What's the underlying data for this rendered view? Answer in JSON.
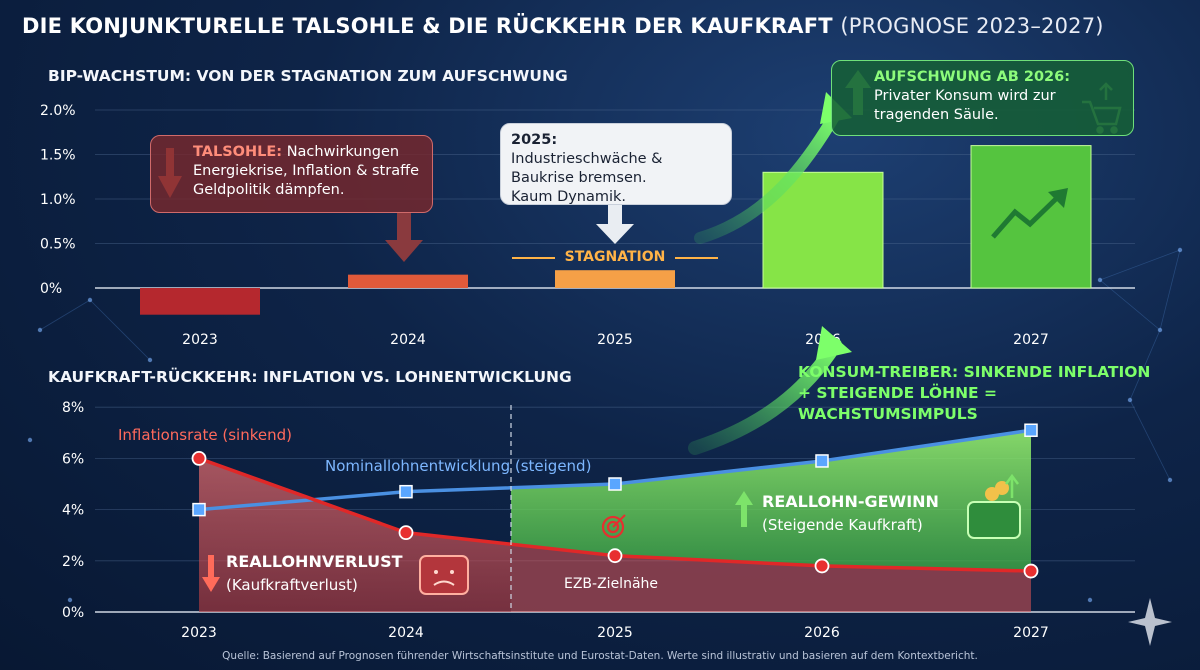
{
  "title": {
    "main": "DIE KONJUNKTURELLE TALSOHLE & DIE RÜCKKEHR DER KAUFKRAFT",
    "subtitle": "(PROGNOSE 2023–2027)"
  },
  "colors": {
    "negative_bar": "#b5282e",
    "bar_2024": "#e05a3a",
    "bar_2025": "#f5a047",
    "bar_2026": "#86e447",
    "bar_2027": "#55c43f",
    "inflation": "#e02828",
    "wages": "#4a90e2",
    "gain_area": "#7de36a",
    "loss_area": "#e05555"
  },
  "chart_data": [
    {
      "type": "bar",
      "title": "BIP-WACHSTUM: VON DER STAGNATION ZUM AUFSCHWUNG",
      "categories": [
        "2023",
        "2024",
        "2025",
        "2026",
        "2027"
      ],
      "values": [
        -0.3,
        0.15,
        0.2,
        1.3,
        1.6
      ],
      "ylim": [
        -0.3,
        2.0
      ],
      "yticks": [
        0,
        0.5,
        1.0,
        1.5,
        2.0
      ],
      "ytick_labels": [
        "0%",
        "0.5%",
        "1.0%",
        "1.5%",
        "2.0%"
      ],
      "grid": true,
      "annotations": {
        "talsohle_label": "TALSOHLE:",
        "talsohle_text": "Nachwirkungen Energiekrise, Inflation & straffe Geldpolitik dämpfen.",
        "y2025_label": "2025:",
        "y2025_text": "Industrieschwäche & Baukrise bremsen. Kaum Dynamik.",
        "stagnation": "STAGNATION",
        "aufschwung_label": "AUFSCHWUNG AB 2026:",
        "aufschwung_text": "Privater Konsum wird zur tragenden Säule."
      }
    },
    {
      "type": "line",
      "title": "KAUFKRAFT-RÜCKKEHR: INFLATION VS. LOHNENTWICKLUNG",
      "x": [
        "2023",
        "2024",
        "2025",
        "2026",
        "2027"
      ],
      "series": [
        {
          "name": "Inflationsrate (sinkend)",
          "values": [
            6.0,
            3.1,
            2.2,
            1.8,
            1.6
          ]
        },
        {
          "name": "Nominallohnentwicklung (steigend)",
          "values": [
            4.0,
            4.7,
            5.0,
            5.9,
            7.1
          ]
        }
      ],
      "ylim": [
        0,
        8
      ],
      "yticks": [
        0,
        2,
        4,
        6,
        8
      ],
      "ytick_labels": [
        "0%",
        "2%",
        "4%",
        "6%",
        "8%"
      ],
      "grid": true,
      "annotations": {
        "konsum_treiber": "KONSUM-TREIBER: SINKENDE INFLATION + STEIGENDE LÖHNE = WACHSTUMSIMPULS",
        "reallohnverlust": "REALLOHNVERLUST",
        "reallohnverlust_sub": "(Kaufkraftverlust)",
        "reallohn_gewinn": "REALLOHN-GEWINN",
        "reallohn_gewinn_sub": "(Steigende Kaufkraft)",
        "ezb": "EZB-Zielnähe"
      }
    }
  ],
  "footer": "Quelle: Basierend auf Prognosen führender Wirtschaftsinstitute und Eurostat-Daten. Werte sind illustrativ und basieren auf dem Kontextbericht."
}
